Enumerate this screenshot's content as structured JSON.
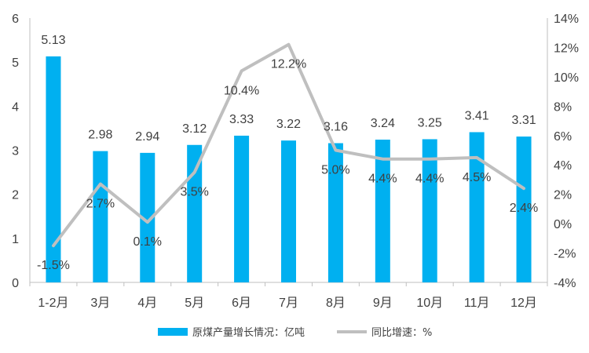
{
  "chart_data": {
    "type": "bar",
    "categories": [
      "1-2月",
      "3月",
      "4月",
      "5月",
      "6月",
      "7月",
      "8月",
      "9月",
      "10月",
      "11月",
      "12月"
    ],
    "series": [
      {
        "name": "原煤产量增长情况：亿吨",
        "type": "bar",
        "axis": "left",
        "color": "#00B0F0",
        "values": [
          5.13,
          2.98,
          2.94,
          3.12,
          3.33,
          3.22,
          3.16,
          3.24,
          3.25,
          3.41,
          3.31
        ],
        "labels": [
          "5.13",
          "2.98",
          "2.94",
          "3.12",
          "3.33",
          "3.22",
          "3.16",
          "3.24",
          "3.25",
          "3.41",
          "3.31"
        ]
      },
      {
        "name": "同比增速：%",
        "type": "line",
        "axis": "right",
        "color": "#BFBFBF",
        "values": [
          -1.5,
          2.7,
          0.1,
          3.5,
          10.4,
          12.2,
          5.0,
          4.4,
          4.4,
          4.5,
          2.4
        ],
        "labels": [
          "-1.5%",
          "2.7%",
          "0.1%",
          "3.5%",
          "10.4%",
          "12.2%",
          "5.0%",
          "4.4%",
          "4.4%",
          "4.5%",
          "2.4%"
        ]
      }
    ],
    "y_left": {
      "min": 0,
      "max": 6,
      "ticks": [
        "0",
        "1",
        "2",
        "3",
        "4",
        "5",
        "6"
      ]
    },
    "y_right": {
      "min": -4,
      "max": 14,
      "ticks": [
        "-4%",
        "-2%",
        "0%",
        "2%",
        "4%",
        "6%",
        "8%",
        "10%",
        "12%",
        "14%"
      ]
    },
    "grid": false,
    "legend_position": "bottom"
  }
}
